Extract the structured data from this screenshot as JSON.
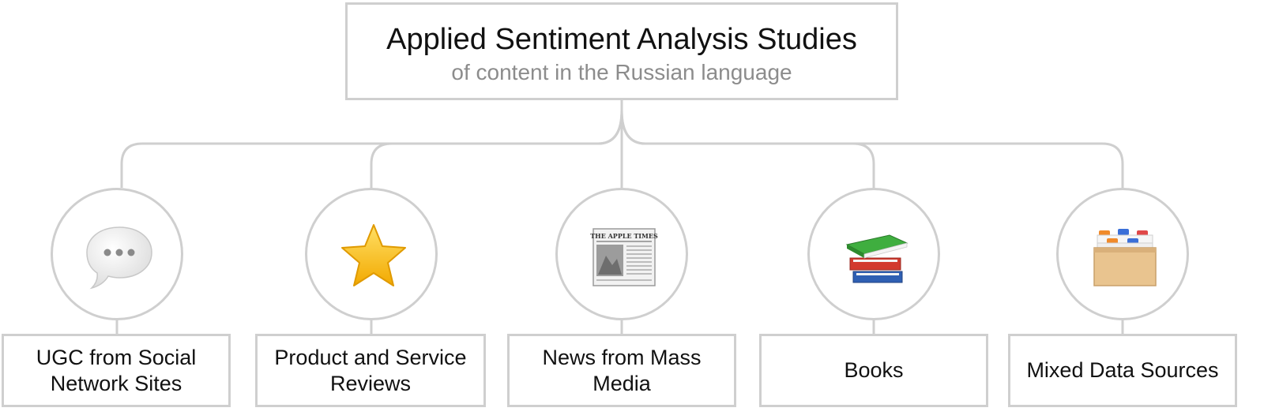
{
  "root": {
    "title": "Applied Sentiment Analysis Studies",
    "subtitle": "of content in the Russian language"
  },
  "categories": [
    {
      "label": "UGC from Social Network Sites",
      "icon": "speech-bubble-icon"
    },
    {
      "label": "Product and Service Reviews",
      "icon": "star-icon"
    },
    {
      "label": "News from Mass Media",
      "icon": "newspaper-icon"
    },
    {
      "label": "Books",
      "icon": "books-icon"
    },
    {
      "label": "Mixed Data Sources",
      "icon": "card-file-box-icon"
    }
  ],
  "newspaper_masthead": "THE APPLE TIMES",
  "colors": {
    "border": "#cfcfcf",
    "title": "#111111",
    "subtitle": "#8c8c8c",
    "star": "#f7c21b",
    "book_green": "#3a9a3a",
    "book_red": "#d23a2e",
    "book_blue": "#2f5fb3",
    "folder": "#e9c48f"
  }
}
